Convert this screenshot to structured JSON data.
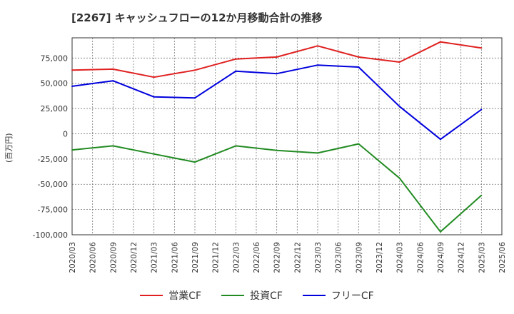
{
  "chart_data": {
    "type": "line",
    "title": "[2267]  キャッシュフローの12か月移動合計の推移",
    "ylabel": "(百万円)",
    "xlabel": "",
    "ylim": [
      -100000,
      95000
    ],
    "yticks": [
      75000,
      50000,
      25000,
      0,
      -25000,
      -50000,
      -75000,
      -100000
    ],
    "ytick_labels": [
      "75,000",
      "50,000",
      "25,000",
      "0",
      "-25,000",
      "-50,000",
      "-75,000",
      "-100,000"
    ],
    "xticks": [
      "2020/03",
      "2020/06",
      "2020/09",
      "2020/12",
      "2021/03",
      "2021/06",
      "2021/09",
      "2021/12",
      "2022/03",
      "2022/06",
      "2022/09",
      "2022/12",
      "2023/03",
      "2023/06",
      "2023/09",
      "2023/12",
      "2024/03",
      "2024/06",
      "2024/09",
      "2024/12",
      "2025/03",
      "2025/06"
    ],
    "grid": true,
    "series": [
      {
        "name": "営業CF",
        "color": "#e02020",
        "x": [
          "2020/03",
          "2020/09",
          "2021/03",
          "2021/09",
          "2022/03",
          "2022/09",
          "2023/03",
          "2023/09",
          "2024/03",
          "2024/09",
          "2025/03"
        ],
        "values": [
          63000,
          64000,
          56000,
          63000,
          74000,
          76000,
          87000,
          76000,
          71000,
          91000,
          85000
        ]
      },
      {
        "name": "投資CF",
        "color": "#228b22",
        "x": [
          "2020/03",
          "2020/09",
          "2021/03",
          "2021/09",
          "2022/03",
          "2022/09",
          "2023/03",
          "2023/09",
          "2024/03",
          "2024/09",
          "2025/03"
        ],
        "values": [
          -16000,
          -12000,
          -20000,
          -28000,
          -12000,
          -16500,
          -19000,
          -10000,
          -44000,
          -97000,
          -61000
        ]
      },
      {
        "name": "フリーCF",
        "color": "#0000dd",
        "x": [
          "2020/03",
          "2020/09",
          "2021/03",
          "2021/09",
          "2022/03",
          "2022/09",
          "2023/03",
          "2023/09",
          "2024/03",
          "2024/09",
          "2025/03"
        ],
        "values": [
          47000,
          52500,
          36500,
          35500,
          62000,
          59500,
          68000,
          66000,
          27000,
          -5500,
          24000
        ]
      }
    ]
  }
}
